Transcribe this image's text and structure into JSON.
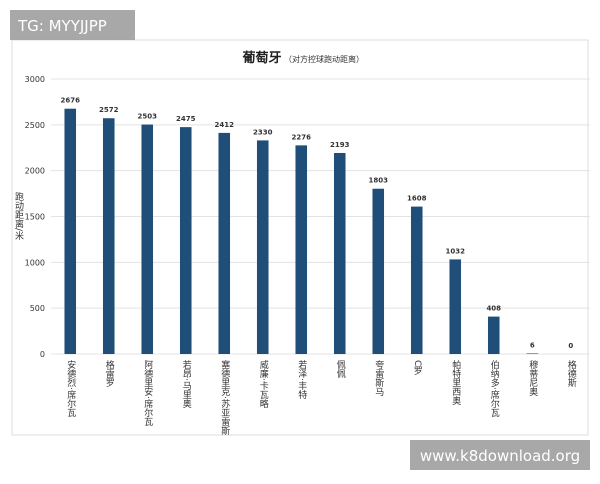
{
  "chart_data": {
    "type": "bar",
    "title": "葡萄牙",
    "subtitle": "（对方控球跑动距离）",
    "y_label": "跑动距离/米",
    "categories": [
      "安德烈·席尔瓦",
      "格雷罗",
      "阿德里安·席尔瓦",
      "若昂·马里奥",
      "塞德里克·苏亚雷斯",
      "威廉·卡瓦略",
      "若泽·丰特",
      "佩佩",
      "夸雷斯马",
      "C罗",
      "帕特里西奥",
      "伯纳多·席尔瓦",
      "穆蒂尼奥",
      "格德斯"
    ],
    "values": [
      2676,
      2572,
      2503,
      2475,
      2412,
      2330,
      2276,
      2193,
      1803,
      1608,
      1032,
      408,
      6,
      0
    ],
    "color": "#1f4e79",
    "ylim": [
      0,
      3000
    ],
    "yticks": [
      0,
      500,
      1000,
      1500,
      2000,
      2500,
      3000
    ],
    "grid": true
  },
  "watermarks": {
    "top_left": "TG: MYYJJPP",
    "bottom_right": "www.k8download.org"
  }
}
